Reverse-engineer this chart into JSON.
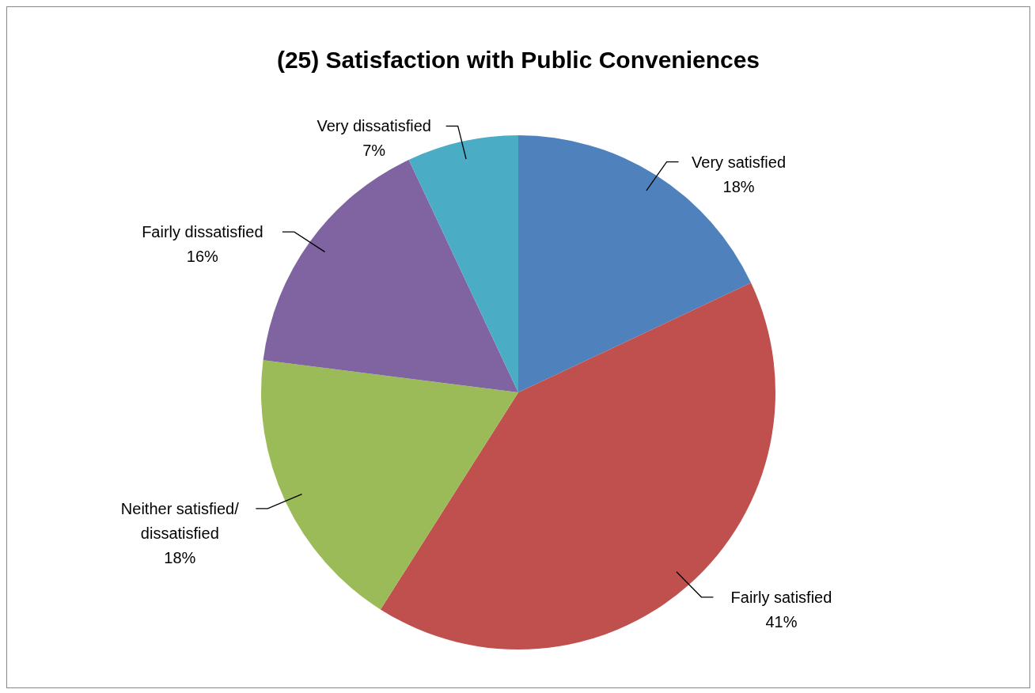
{
  "chart_data": {
    "type": "pie",
    "title": "(25) Satisfaction with Public Conveniences",
    "categories": [
      "Very satisfied",
      "Fairly satisfied",
      "Neither satisfied/ dissatisfied",
      "Fairly dissatisfied",
      "Very dissatisfied"
    ],
    "values": [
      18,
      41,
      18,
      16,
      7
    ],
    "value_labels": [
      "18%",
      "41%",
      "18%",
      "16%",
      "7%"
    ],
    "colors": [
      "#4f81bd",
      "#c0504d",
      "#9bbb59",
      "#8064a2",
      "#4bacc6"
    ],
    "legend": false
  }
}
